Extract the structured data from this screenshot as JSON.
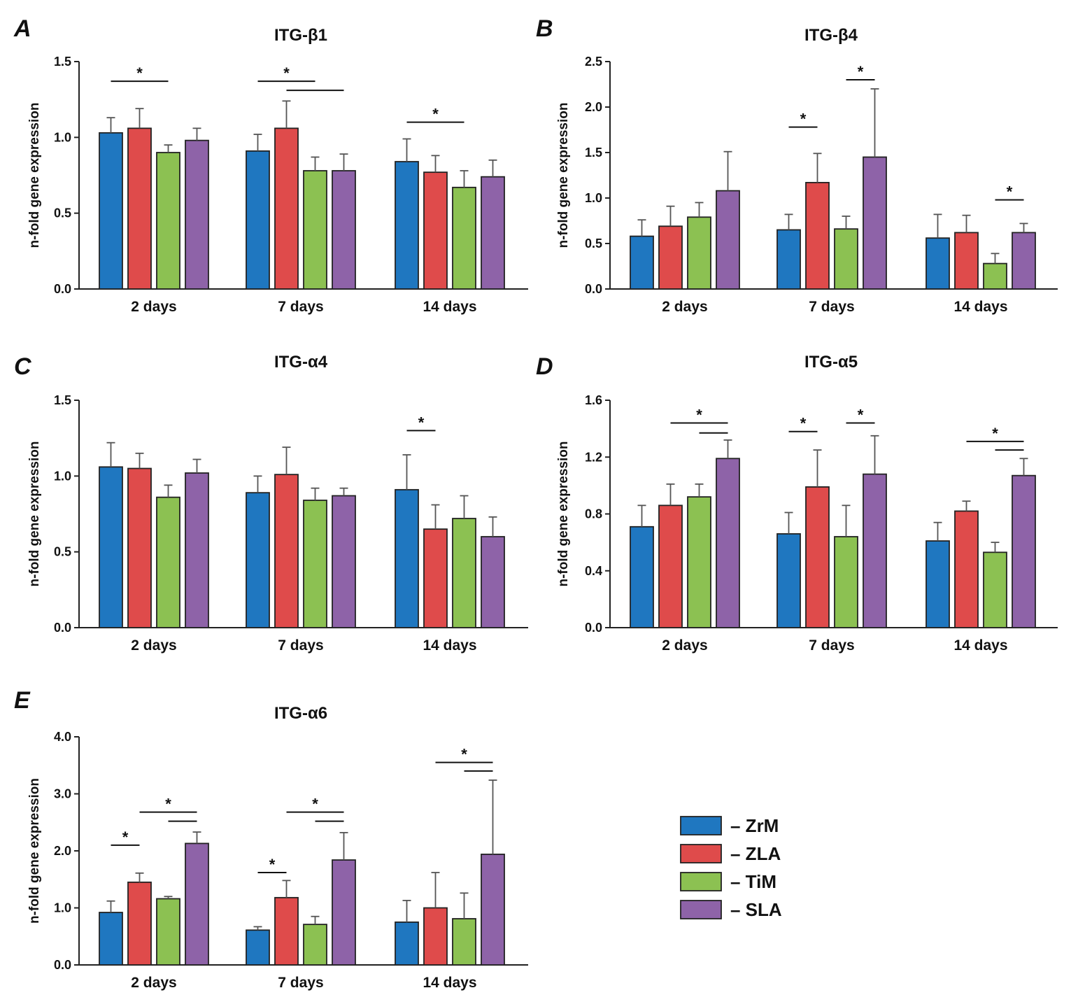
{
  "legend": [
    {
      "label": "– ZrM",
      "color": "#1f77c0"
    },
    {
      "label": "– ZLA",
      "color": "#df4b4b"
    },
    {
      "label": "– TiM",
      "color": "#8cc152"
    },
    {
      "label": "– SLA",
      "color": "#8e63a8"
    }
  ],
  "chart_data": [
    {
      "panel": "A",
      "type": "bar",
      "title": "ITG-β1",
      "xlabel": "",
      "ylabel": "n-fold gene expression",
      "categories": [
        "2 days",
        "7 days",
        "14 days"
      ],
      "ylim": [
        0,
        1.5
      ],
      "yticks": [
        "0.0",
        "0.5",
        "1.0",
        "1.5"
      ],
      "series": [
        {
          "name": "ZrM",
          "values": [
            1.03,
            0.91,
            0.84
          ],
          "errors": [
            0.1,
            0.11,
            0.15
          ]
        },
        {
          "name": "ZLA",
          "values": [
            1.06,
            1.06,
            0.77
          ],
          "errors": [
            0.13,
            0.18,
            0.11
          ]
        },
        {
          "name": "TiM",
          "values": [
            0.9,
            0.78,
            0.67
          ],
          "errors": [
            0.05,
            0.09,
            0.11
          ]
        },
        {
          "name": "SLA",
          "values": [
            0.98,
            0.78,
            0.74
          ],
          "errors": [
            0.08,
            0.11,
            0.11
          ]
        }
      ],
      "significance": [
        {
          "star": "*",
          "lines": [
            {
              "group": 0,
              "from": 0,
              "to": 2,
              "y": 1.37
            }
          ]
        },
        {
          "star": "*",
          "lines": [
            {
              "group": 1,
              "from": 0,
              "to": 2,
              "y": 1.37
            },
            {
              "group": 1,
              "from": 1,
              "to": 3,
              "y": 1.31
            }
          ]
        },
        {
          "star": "*",
          "lines": [
            {
              "group": 2,
              "from": 0,
              "to": 2,
              "y": 1.1
            }
          ]
        }
      ]
    },
    {
      "panel": "B",
      "type": "bar",
      "title": "ITG-β4",
      "xlabel": "",
      "ylabel": "n-fold gene expression",
      "categories": [
        "2 days",
        "7 days",
        "14 days"
      ],
      "ylim": [
        0,
        2.5
      ],
      "yticks": [
        "0.0",
        "0.5",
        "1.0",
        "1.5",
        "2.0",
        "2.5"
      ],
      "series": [
        {
          "name": "ZrM",
          "values": [
            0.58,
            0.65,
            0.56
          ],
          "errors": [
            0.18,
            0.17,
            0.26
          ]
        },
        {
          "name": "ZLA",
          "values": [
            0.69,
            1.17,
            0.62
          ],
          "errors": [
            0.22,
            0.32,
            0.19
          ]
        },
        {
          "name": "TiM",
          "values": [
            0.79,
            0.66,
            0.28
          ],
          "errors": [
            0.16,
            0.14,
            0.11
          ]
        },
        {
          "name": "SLA",
          "values": [
            1.08,
            1.45,
            0.62
          ],
          "errors": [
            0.43,
            0.75,
            0.1
          ]
        }
      ],
      "significance": [
        {
          "star": "*",
          "lines": [
            {
              "group": 1,
              "from": 0,
              "to": 1,
              "y": 1.78
            }
          ]
        },
        {
          "star": "*",
          "lines": [
            {
              "group": 1,
              "from": 2,
              "to": 3,
              "y": 2.3
            }
          ]
        },
        {
          "star": "*",
          "lines": [
            {
              "group": 2,
              "from": 2,
              "to": 3,
              "y": 0.98
            }
          ]
        }
      ]
    },
    {
      "panel": "C",
      "type": "bar",
      "title": "ITG-α4",
      "xlabel": "",
      "ylabel": "n-fold gene expression",
      "categories": [
        "2 days",
        "7 days",
        "14 days"
      ],
      "ylim": [
        0,
        1.5
      ],
      "yticks": [
        "0.0",
        "0.5",
        "1.0",
        "1.5"
      ],
      "series": [
        {
          "name": "ZrM",
          "values": [
            1.06,
            0.89,
            0.91
          ],
          "errors": [
            0.16,
            0.11,
            0.23
          ]
        },
        {
          "name": "ZLA",
          "values": [
            1.05,
            1.01,
            0.65
          ],
          "errors": [
            0.1,
            0.18,
            0.16
          ]
        },
        {
          "name": "TiM",
          "values": [
            0.86,
            0.84,
            0.72
          ],
          "errors": [
            0.08,
            0.08,
            0.15
          ]
        },
        {
          "name": "SLA",
          "values": [
            1.02,
            0.87,
            0.6
          ],
          "errors": [
            0.09,
            0.05,
            0.13
          ]
        }
      ],
      "significance": [
        {
          "star": "*",
          "lines": [
            {
              "group": 2,
              "from": 0,
              "to": 1,
              "y": 1.3
            }
          ]
        }
      ]
    },
    {
      "panel": "D",
      "type": "bar",
      "title": "ITG-α5",
      "xlabel": "",
      "ylabel": "n-fold gene expression",
      "categories": [
        "2 days",
        "7 days",
        "14 days"
      ],
      "ylim": [
        0,
        1.6
      ],
      "yticks": [
        "0.0",
        "0.4",
        "0.8",
        "1.2",
        "1.6"
      ],
      "series": [
        {
          "name": "ZrM",
          "values": [
            0.71,
            0.66,
            0.61
          ],
          "errors": [
            0.15,
            0.15,
            0.13
          ]
        },
        {
          "name": "ZLA",
          "values": [
            0.86,
            0.99,
            0.82
          ],
          "errors": [
            0.15,
            0.26,
            0.07
          ]
        },
        {
          "name": "TiM",
          "values": [
            0.92,
            0.64,
            0.53
          ],
          "errors": [
            0.09,
            0.22,
            0.07
          ]
        },
        {
          "name": "SLA",
          "values": [
            1.19,
            1.08,
            1.07
          ],
          "errors": [
            0.13,
            0.27,
            0.12
          ]
        }
      ],
      "significance": [
        {
          "star": "*",
          "lines": [
            {
              "group": 0,
              "from": 1,
              "to": 3,
              "y": 1.44
            },
            {
              "group": 0,
              "from": 2,
              "to": 3,
              "y": 1.37
            }
          ]
        },
        {
          "star": "*",
          "lines": [
            {
              "group": 1,
              "from": 0,
              "to": 1,
              "y": 1.38
            }
          ]
        },
        {
          "star": "*",
          "lines": [
            {
              "group": 1,
              "from": 2,
              "to": 3,
              "y": 1.44
            }
          ]
        },
        {
          "star": "*",
          "lines": [
            {
              "group": 2,
              "from": 1,
              "to": 3,
              "y": 1.31
            },
            {
              "group": 2,
              "from": 2,
              "to": 3,
              "y": 1.25
            }
          ]
        }
      ]
    },
    {
      "panel": "E",
      "type": "bar",
      "title": "ITG-α6",
      "xlabel": "",
      "ylabel": "n-fold gene expression",
      "categories": [
        "2 days",
        "7 days",
        "14 days"
      ],
      "ylim": [
        0,
        4.0
      ],
      "yticks": [
        "0.0",
        "1.0",
        "2.0",
        "3.0",
        "4.0"
      ],
      "series": [
        {
          "name": "ZrM",
          "values": [
            0.92,
            0.61,
            0.75
          ],
          "errors": [
            0.2,
            0.06,
            0.38
          ]
        },
        {
          "name": "ZLA",
          "values": [
            1.45,
            1.18,
            1.0
          ],
          "errors": [
            0.16,
            0.3,
            0.62
          ]
        },
        {
          "name": "TiM",
          "values": [
            1.16,
            0.71,
            0.81
          ],
          "errors": [
            0.04,
            0.14,
            0.45
          ]
        },
        {
          "name": "SLA",
          "values": [
            2.13,
            1.84,
            1.94
          ],
          "errors": [
            0.2,
            0.48,
            1.3
          ]
        }
      ],
      "significance": [
        {
          "star": "*",
          "lines": [
            {
              "group": 0,
              "from": 0,
              "to": 1,
              "y": 2.1
            }
          ]
        },
        {
          "star": "*",
          "lines": [
            {
              "group": 0,
              "from": 1,
              "to": 3,
              "y": 2.68
            },
            {
              "group": 0,
              "from": 2,
              "to": 3,
              "y": 2.52
            }
          ]
        },
        {
          "star": "*",
          "lines": [
            {
              "group": 1,
              "from": 0,
              "to": 1,
              "y": 1.62
            }
          ]
        },
        {
          "star": "*",
          "lines": [
            {
              "group": 1,
              "from": 1,
              "to": 3,
              "y": 2.68
            },
            {
              "group": 1,
              "from": 2,
              "to": 3,
              "y": 2.52
            }
          ]
        },
        {
          "star": "*",
          "lines": [
            {
              "group": 2,
              "from": 1,
              "to": 3,
              "y": 3.55
            },
            {
              "group": 2,
              "from": 2,
              "to": 3,
              "y": 3.4
            }
          ]
        }
      ]
    }
  ]
}
